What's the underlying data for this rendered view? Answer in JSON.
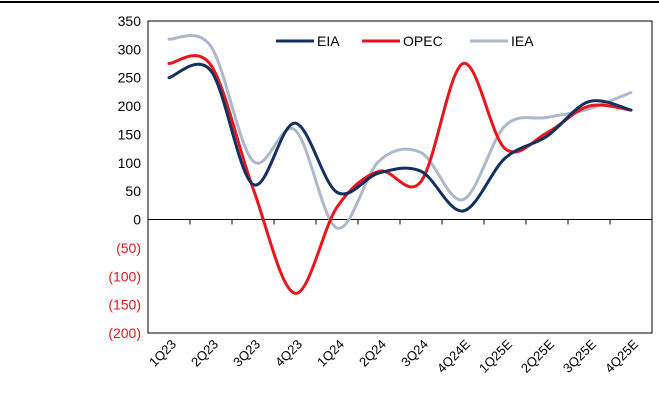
{
  "chart_data": {
    "type": "line",
    "categories": [
      "1Q23",
      "2Q23",
      "3Q23",
      "4Q23",
      "1Q24",
      "2Q24",
      "3Q24",
      "4Q24E",
      "1Q25E",
      "2Q25E",
      "3Q25E",
      "4Q25E"
    ],
    "ylim": [
      -200,
      350
    ],
    "yticks": [
      {
        "value": 350,
        "label": "350"
      },
      {
        "value": 300,
        "label": "300"
      },
      {
        "value": 250,
        "label": "250"
      },
      {
        "value": 200,
        "label": "200"
      },
      {
        "value": 150,
        "label": "150"
      },
      {
        "value": 100,
        "label": "100"
      },
      {
        "value": 50,
        "label": "50"
      },
      {
        "value": 0,
        "label": "0"
      },
      {
        "value": -50,
        "label": "(50)"
      },
      {
        "value": -100,
        "label": "(100)"
      },
      {
        "value": -150,
        "label": "(150)"
      },
      {
        "value": -200,
        "label": "(200)"
      }
    ],
    "negative_label_color": "#e8161c",
    "positive_label_color": "#000000",
    "legend_position": "top-center",
    "grid": false,
    "series": [
      {
        "name": "EIA",
        "color": "#14305f",
        "values": [
          250,
          262,
          62,
          170,
          48,
          82,
          85,
          15,
          108,
          147,
          208,
          193
        ]
      },
      {
        "name": "OPEC",
        "color": "#e8161c",
        "values": [
          275,
          272,
          55,
          -130,
          22,
          85,
          67,
          275,
          125,
          153,
          200,
          193
        ]
      },
      {
        "name": "IEA",
        "color": "#adb9ca",
        "values": [
          318,
          305,
          103,
          158,
          -15,
          103,
          118,
          35,
          165,
          180,
          195,
          224
        ]
      }
    ]
  }
}
